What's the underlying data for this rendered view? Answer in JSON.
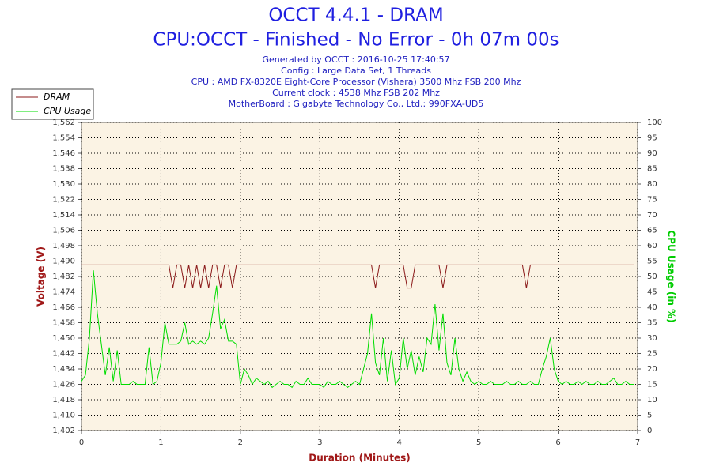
{
  "chart_data": {
    "type": "line",
    "title": "OCCT 4.4.1 - DRAM",
    "subtitle": "CPU:OCCT - Finished - No Error - 0h 07m 00s",
    "info": [
      "Generated by OCCT : 2016-10-25 17:40:57",
      "Config : Large Data Set, 1 Threads",
      "CPU : AMD FX-8320E Eight-Core Processor (Vishera) 3500 Mhz FSB 200 Mhz",
      "Current clock : 4538 Mhz FSB 202 Mhz",
      "MotherBoard : Gigabyte Technology Co., Ltd.: 990FXA-UD5"
    ],
    "x_label": "Duration (Minutes)",
    "y_label": "Voltage (V)",
    "y2_label": "CPU Usage (in %)",
    "xlim": [
      0,
      7
    ],
    "xticks": [
      0,
      1,
      2,
      3,
      4,
      5,
      6,
      7
    ],
    "ylim": [
      1.402,
      1.562
    ],
    "yticks": [
      {
        "value": 1.402,
        "label": "1,402"
      },
      {
        "value": 1.41,
        "label": "1,410"
      },
      {
        "value": 1.418,
        "label": "1,418"
      },
      {
        "value": 1.426,
        "label": "1,426"
      },
      {
        "value": 1.434,
        "label": "1,434"
      },
      {
        "value": 1.442,
        "label": "1,442"
      },
      {
        "value": 1.45,
        "label": "1,450"
      },
      {
        "value": 1.458,
        "label": "1,458"
      },
      {
        "value": 1.466,
        "label": "1,466"
      },
      {
        "value": 1.474,
        "label": "1,474"
      },
      {
        "value": 1.482,
        "label": "1,482"
      },
      {
        "value": 1.49,
        "label": "1,490"
      },
      {
        "value": 1.498,
        "label": "1,498"
      },
      {
        "value": 1.506,
        "label": "1,506"
      },
      {
        "value": 1.514,
        "label": "1,514"
      },
      {
        "value": 1.522,
        "label": "1,522"
      },
      {
        "value": 1.53,
        "label": "1,530"
      },
      {
        "value": 1.538,
        "label": "1,538"
      },
      {
        "value": 1.546,
        "label": "1,546"
      },
      {
        "value": 1.554,
        "label": "1,554"
      },
      {
        "value": 1.562,
        "label": "1,562"
      }
    ],
    "y2lim": [
      0,
      100
    ],
    "y2ticks": [
      0,
      5,
      10,
      15,
      20,
      25,
      30,
      35,
      40,
      45,
      50,
      55,
      60,
      65,
      70,
      75,
      80,
      85,
      90,
      95,
      100
    ],
    "grid": true,
    "legend": "top-left",
    "x": [
      0,
      0.05,
      0.1,
      0.15,
      0.2,
      0.25,
      0.3,
      0.35,
      0.4,
      0.45,
      0.5,
      0.55,
      0.6,
      0.65,
      0.7,
      0.75,
      0.8,
      0.85,
      0.9,
      0.95,
      1,
      1.05,
      1.1,
      1.15,
      1.2,
      1.25,
      1.3,
      1.35,
      1.4,
      1.45,
      1.5,
      1.55,
      1.6,
      1.65,
      1.7,
      1.75,
      1.8,
      1.85,
      1.9,
      1.95,
      2,
      2.05,
      2.1,
      2.15,
      2.2,
      2.25,
      2.3,
      2.35,
      2.4,
      2.45,
      2.5,
      2.55,
      2.6,
      2.65,
      2.7,
      2.75,
      2.8,
      2.85,
      2.9,
      2.95,
      3,
      3.05,
      3.1,
      3.15,
      3.2,
      3.25,
      3.3,
      3.35,
      3.4,
      3.45,
      3.5,
      3.55,
      3.6,
      3.65,
      3.7,
      3.75,
      3.8,
      3.85,
      3.9,
      3.95,
      4,
      4.05,
      4.1,
      4.15,
      4.2,
      4.25,
      4.3,
      4.35,
      4.4,
      4.45,
      4.5,
      4.55,
      4.6,
      4.65,
      4.7,
      4.75,
      4.8,
      4.85,
      4.9,
      4.95,
      5,
      5.05,
      5.1,
      5.15,
      5.2,
      5.25,
      5.3,
      5.35,
      5.4,
      5.45,
      5.5,
      5.55,
      5.6,
      5.65,
      5.7,
      5.75,
      5.8,
      5.85,
      5.9,
      5.95,
      6,
      6.05,
      6.1,
      6.15,
      6.2,
      6.25,
      6.3,
      6.35,
      6.4,
      6.45,
      6.5,
      6.55,
      6.6,
      6.65,
      6.7,
      6.75,
      6.8,
      6.85,
      6.9,
      6.95
    ],
    "series": [
      {
        "name": "DRAM",
        "color": "#8b1a1a",
        "values": [
          1.488,
          1.488,
          1.488,
          1.488,
          1.488,
          1.488,
          1.488,
          1.488,
          1.488,
          1.488,
          1.488,
          1.488,
          1.488,
          1.488,
          1.488,
          1.488,
          1.488,
          1.488,
          1.488,
          1.488,
          1.488,
          1.488,
          1.488,
          1.476,
          1.488,
          1.488,
          1.476,
          1.488,
          1.476,
          1.488,
          1.476,
          1.488,
          1.476,
          1.488,
          1.488,
          1.476,
          1.488,
          1.488,
          1.476,
          1.488,
          1.488,
          1.488,
          1.488,
          1.488,
          1.488,
          1.488,
          1.488,
          1.488,
          1.488,
          1.488,
          1.488,
          1.488,
          1.488,
          1.488,
          1.488,
          1.488,
          1.488,
          1.488,
          1.488,
          1.488,
          1.488,
          1.488,
          1.488,
          1.488,
          1.488,
          1.488,
          1.488,
          1.488,
          1.488,
          1.488,
          1.488,
          1.488,
          1.488,
          1.488,
          1.476,
          1.488,
          1.488,
          1.488,
          1.488,
          1.488,
          1.488,
          1.488,
          1.476,
          1.476,
          1.488,
          1.488,
          1.488,
          1.488,
          1.488,
          1.488,
          1.488,
          1.476,
          1.488,
          1.488,
          1.488,
          1.488,
          1.488,
          1.488,
          1.488,
          1.488,
          1.488,
          1.488,
          1.488,
          1.488,
          1.488,
          1.488,
          1.488,
          1.488,
          1.488,
          1.488,
          1.488,
          1.488,
          1.476,
          1.488,
          1.488,
          1.488,
          1.488,
          1.488,
          1.488,
          1.488,
          1.488,
          1.488,
          1.488,
          1.488,
          1.488,
          1.488,
          1.488,
          1.488,
          1.488,
          1.488,
          1.488,
          1.488,
          1.488,
          1.488,
          1.488,
          1.488,
          1.488,
          1.488,
          1.488,
          1.488
        ]
      },
      {
        "name": "CPU Usage",
        "color": "#00dd00",
        "axis": "y2",
        "values": [
          16,
          18,
          30,
          52,
          38,
          28,
          18,
          27,
          16,
          26,
          15,
          15,
          15,
          16,
          15,
          15,
          15,
          27,
          15,
          16,
          22,
          35,
          28,
          28,
          28,
          29,
          35,
          28,
          29,
          28,
          29,
          28,
          30,
          38,
          47,
          33,
          36,
          29,
          29,
          28,
          15,
          20,
          18,
          15,
          17,
          16,
          15,
          16,
          14,
          15,
          16,
          15,
          15,
          14,
          16,
          15,
          15,
          17,
          15,
          15,
          15,
          14,
          16,
          15,
          15,
          16,
          15,
          14,
          15,
          16,
          15,
          20,
          25,
          38,
          22,
          18,
          30,
          16,
          26,
          15,
          17,
          30,
          20,
          26,
          18,
          24,
          19,
          30,
          28,
          41,
          26,
          38,
          22,
          18,
          30,
          20,
          16,
          19,
          16,
          15,
          16,
          15,
          15,
          16,
          15,
          15,
          15,
          16,
          15,
          15,
          16,
          15,
          15,
          16,
          15,
          15,
          20,
          24,
          30,
          20,
          16,
          15,
          16,
          15,
          15,
          16,
          15,
          16,
          15,
          15,
          16,
          15,
          15,
          16,
          17,
          15,
          15,
          16,
          15,
          15
        ]
      }
    ]
  }
}
